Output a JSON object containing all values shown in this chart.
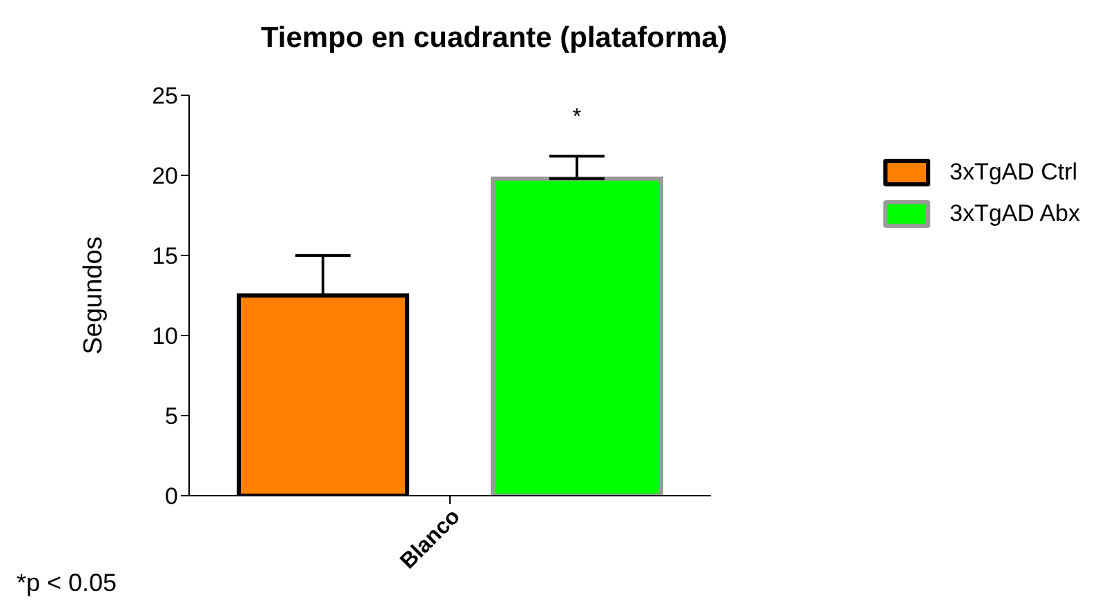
{
  "chart_data": {
    "type": "bar",
    "title": "Tiempo en cuadrante (plataforma)",
    "ylabel": "Segundos",
    "categories": [
      "Blanco"
    ],
    "series": [
      {
        "name": "3xTgAD Ctrl",
        "color": "#ff8000",
        "values": [
          12.5
        ],
        "errors": [
          [
            12.5,
            15.0
          ]
        ]
      },
      {
        "name": "3xTgAD Abx",
        "color": "#00ff00",
        "values": [
          19.8
        ],
        "errors": [
          [
            19.8,
            21.2
          ]
        ]
      }
    ],
    "ylim": [
      0,
      25
    ],
    "yticks": [
      0,
      5,
      10,
      15,
      20,
      25
    ],
    "grid": false,
    "legend": "right",
    "annotations": [
      "*",
      "*p < 0.05"
    ]
  }
}
